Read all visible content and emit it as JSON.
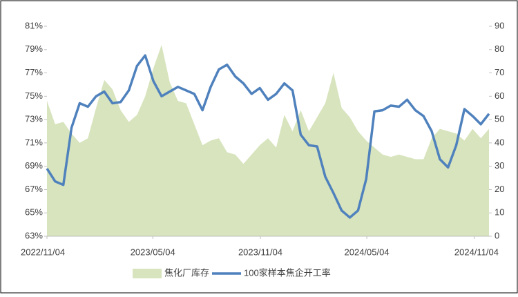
{
  "chart_data": {
    "type": "combo",
    "x": [
      "2022/11/04",
      "2022/11/18",
      "2022/12/02",
      "2022/12/16",
      "2022/12/30",
      "2023/01/13",
      "2023/01/27",
      "2023/02/10",
      "2023/02/24",
      "2023/03/10",
      "2023/03/24",
      "2023/04/07",
      "2023/04/21",
      "2023/05/05",
      "2023/05/19",
      "2023/06/02",
      "2023/06/16",
      "2023/06/30",
      "2023/07/14",
      "2023/07/28",
      "2023/08/11",
      "2023/08/25",
      "2023/09/08",
      "2023/09/22",
      "2023/10/06",
      "2023/10/20",
      "2023/11/03",
      "2023/11/17",
      "2023/12/01",
      "2023/12/15",
      "2023/12/29",
      "2024/01/12",
      "2024/01/26",
      "2024/02/09",
      "2024/02/23",
      "2024/03/08",
      "2024/03/22",
      "2024/04/05",
      "2024/04/19",
      "2024/05/03",
      "2024/05/17",
      "2024/05/31",
      "2024/06/14",
      "2024/06/28",
      "2024/07/12",
      "2024/07/26",
      "2024/08/09",
      "2024/08/23",
      "2024/09/06",
      "2024/09/20",
      "2024/10/04",
      "2024/10/18",
      "2024/11/01",
      "2024/11/15",
      "2024/11/29"
    ],
    "xlim": [
      "2022/11/04",
      "2024/11/29"
    ],
    "xticks": [
      "2022/11/04",
      "2023/05/04",
      "2023/11/04",
      "2024/05/04",
      "2024/11/04"
    ],
    "series": [
      {
        "name": "焦化厂库存",
        "type": "area",
        "axis": "y2",
        "color": "#d7e4bd",
        "values": [
          58,
          48,
          49,
          44,
          40,
          42,
          55,
          67,
          63,
          54,
          49,
          52,
          60,
          72,
          82,
          66,
          58,
          57,
          48,
          39,
          41,
          42,
          36,
          35,
          31,
          35,
          39,
          42,
          38,
          52,
          45,
          54,
          45,
          51,
          57,
          70,
          55,
          51,
          45,
          41,
          38,
          35,
          34,
          35,
          34,
          33,
          33,
          42,
          46,
          45,
          44,
          41,
          46,
          42,
          46
        ]
      },
      {
        "name": "100家样本焦企开工率",
        "type": "line",
        "axis": "y",
        "color": "#4f81bd",
        "values": [
          68.8,
          67.7,
          67.4,
          72.3,
          74.4,
          74.1,
          75.0,
          75.4,
          74.4,
          74.5,
          75.5,
          77.6,
          78.5,
          76.3,
          75.0,
          75.4,
          75.8,
          75.5,
          75.2,
          73.8,
          75.8,
          77.3,
          77.7,
          76.7,
          76.1,
          75.2,
          75.7,
          74.7,
          75.2,
          76.1,
          75.5,
          71.7,
          70.8,
          70.7,
          68.1,
          66.7,
          65.2,
          64.6,
          65.2,
          67.9,
          73.7,
          73.8,
          74.2,
          74.1,
          74.7,
          73.8,
          73.3,
          72.0,
          69.6,
          68.9,
          70.8,
          73.9,
          73.3,
          72.6,
          73.5
        ]
      }
    ],
    "ylim": [
      63,
      81
    ],
    "yticks": [
      {
        "value": 63,
        "label": "63%"
      },
      {
        "value": 65,
        "label": "65%"
      },
      {
        "value": 67,
        "label": "67%"
      },
      {
        "value": 69,
        "label": "69%"
      },
      {
        "value": 71,
        "label": "71%"
      },
      {
        "value": 73,
        "label": "73%"
      },
      {
        "value": 75,
        "label": "75%"
      },
      {
        "value": 77,
        "label": "77%"
      },
      {
        "value": 79,
        "label": "79%"
      },
      {
        "value": 81,
        "label": "81%"
      }
    ],
    "y2lim": [
      0,
      90
    ],
    "y2ticks": [
      0,
      10,
      20,
      30,
      40,
      50,
      60,
      70,
      80,
      90
    ],
    "legend": "bottom"
  }
}
